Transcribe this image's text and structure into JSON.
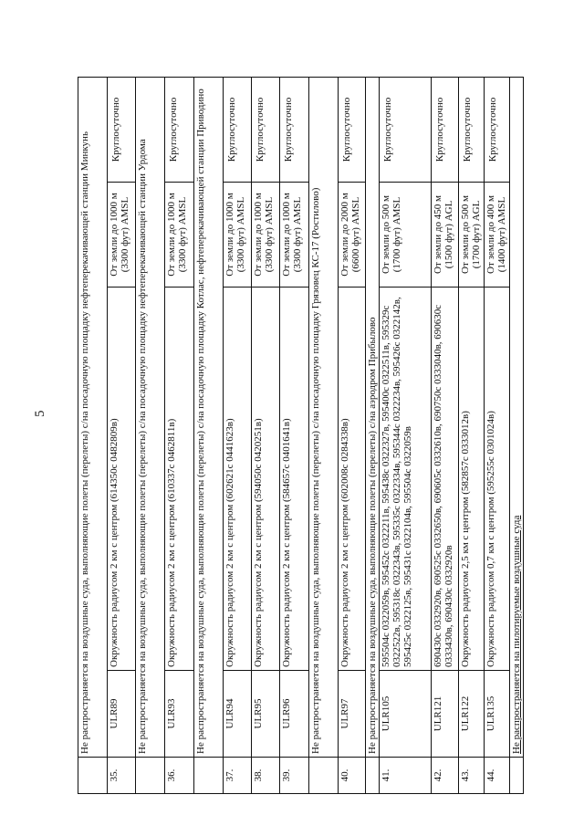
{
  "page_number": "5",
  "rows": [
    {
      "type": "header",
      "text": "Не распространяется на воздушные суда, выполняющие полеты (перелеты) с/на посадочную площадку нефтеперекачивающей станции Минкунь"
    },
    {
      "type": "zone",
      "num": "35.",
      "code": "ULR89",
      "area": "Окружность радиусом 2 км с центром (614350с 0482809в)",
      "alt": "От земли до 1000 м (3300 фут) AMSL",
      "time": "Круглосуточно"
    },
    {
      "type": "header",
      "text": "Не распространяется на воздушные суда, выполняющие полеты (перелеты) с/на посадочную площадку нефтеперекачивающей станции Урдома"
    },
    {
      "type": "zone",
      "num": "36.",
      "code": "ULR93",
      "area": "Окружность радиусом 2 км с центром (610337с 0462811в)",
      "alt": "От земли до 1000 м (3300 фут) AMSL",
      "time": "Круглосуточно"
    },
    {
      "type": "header",
      "text": "Не распространяется на воздушные суда, выполняющие полеты (перелеты) с/на посадочную площадку Котлас, нефтеперекачивающей станции Приводино"
    },
    {
      "type": "zone",
      "num": "37.",
      "code": "ULR94",
      "area": "Окружность радиусом 2 км с центром (602621с 0441623в)",
      "alt": "От земли до 1000 м (3300 фут) AMSL",
      "time": "Круглосуточно"
    },
    {
      "type": "zone",
      "num": "38.",
      "code": "ULR95",
      "area": "Окружность радиусом 2 км с центром (594050с 0420251в)",
      "alt": "От земли до 1000 м (3300 фут) AMSL",
      "time": "Круглосуточно"
    },
    {
      "type": "zone",
      "num": "39.",
      "code": "ULR96",
      "area": "Окружность радиусом 2 км с центром (584657с 0401641в)",
      "alt": "От земли до 1000 м (3300 фут) AMSL",
      "time": "Круглосуточно"
    },
    {
      "type": "header",
      "text": "Не распространяется на воздушные суда, выполняющие полеты (перелеты) с/на посадочную площадку Грязовец КС-17 (Ростилово)"
    },
    {
      "type": "zone",
      "num": "40.",
      "code": "ULR97",
      "area": "Окружность радиусом 2 км с центром (602008с 0284338в)",
      "alt": "От земли до 2000 м (6600 фут) AMSL",
      "time": "Круглосуточно"
    },
    {
      "type": "header",
      "text": "Не распространяется на воздушные суда, выполняющие полеты (перелеты) с/на аэродром Прибылово"
    },
    {
      "type": "zone",
      "num": "41.",
      "code": "ULR105",
      "area": "595504с 0322059в, 595452с 0322211в, 595438с 0322327в, 595400с 0322511в, 595329с 0322522в, 595318с 0322343в, 595335с 0322334в, 595344с 0322234в, 595426с 0322142в, 595425с 0322125в, 595431с 0322104в, 595504с 0322059в",
      "alt": "От земли до 500 м (1700 фут) AMSL",
      "time": "Круглосуточно"
    },
    {
      "type": "zone",
      "num": "42.",
      "code": "ULR121",
      "area": "690430с 0332920в, 690525с 0332650в, 690605с 0332610в, 690750с 0333040в, 690630с 0333430в, 690430с 0332920в",
      "alt": "От земли до 450 м (1500 фут) AGL",
      "time": "Круглосуточно"
    },
    {
      "type": "zone",
      "num": "43.",
      "code": "ULR122",
      "area": "Окружность радиусом 2,5 км с центром (582857с 0333012в)",
      "alt": "От земли до 500 м (1700 фут) AGL",
      "time": "Круглосуточно"
    },
    {
      "type": "zone",
      "num": "44.",
      "code": "ULR135",
      "area": "Окружность радиусом 0,7 км с центром (595255с 0301024в)",
      "alt": "От земли до 400 м (1400 фут) AMSL",
      "time": "Круглосуточно"
    },
    {
      "type": "header",
      "text": "Не распространяется на пилотируемые воздушные суда"
    }
  ]
}
